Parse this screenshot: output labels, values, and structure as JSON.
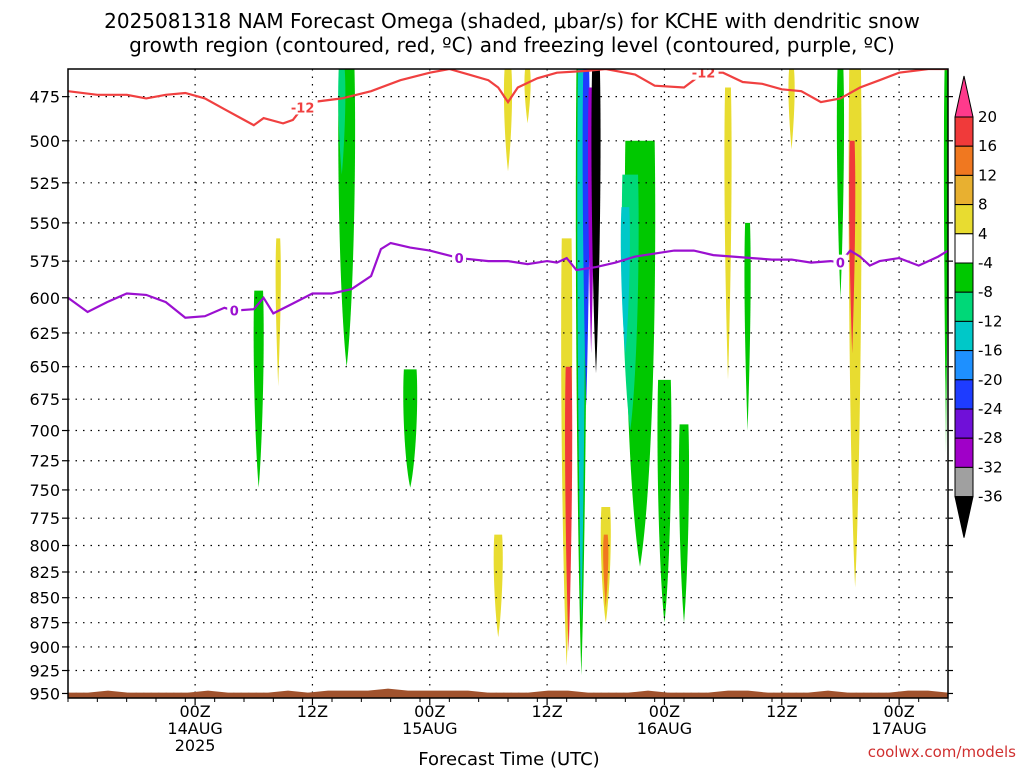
{
  "chart_data": {
    "type": "heatmap",
    "title_line1": "2025081318 NAM Forecast Omega (shaded, μbar/s) for KCHE with dendritic snow",
    "title_line2": "growth region (contoured, red, ºC) and freezing level (contoured, purple, ºC)",
    "xlabel": "Forecast Time (UTC)",
    "credit": "coolwx.com/models",
    "y_ticks": [
      475,
      500,
      525,
      550,
      575,
      600,
      625,
      650,
      675,
      700,
      725,
      750,
      775,
      800,
      825,
      850,
      875,
      900,
      925,
      950
    ],
    "ylim": [
      460,
      955
    ],
    "y_scale": "log-pressure",
    "xlim_hours": [
      -13,
      77
    ],
    "x_ticks": [
      {
        "hour": 0,
        "l1": "00Z",
        "l2": "14AUG",
        "l3": "2025"
      },
      {
        "hour": 12,
        "l1": "12Z",
        "l2": "",
        "l3": ""
      },
      {
        "hour": 24,
        "l1": "00Z",
        "l2": "15AUG",
        "l3": ""
      },
      {
        "hour": 36,
        "l1": "12Z",
        "l2": "",
        "l3": ""
      },
      {
        "hour": 48,
        "l1": "00Z",
        "l2": "16AUG",
        "l3": ""
      },
      {
        "hour": 60,
        "l1": "12Z",
        "l2": "",
        "l3": ""
      },
      {
        "hour": 72,
        "l1": "00Z",
        "l2": "17AUG",
        "l3": ""
      }
    ],
    "grid": true,
    "colorbar": {
      "labels": [
        "20",
        "16",
        "12",
        "8",
        "4",
        "-4",
        "-8",
        "-12",
        "-16",
        "-20",
        "-24",
        "-28",
        "-32",
        "-36"
      ],
      "colors": [
        "#ff3a8c",
        "#f03a3a",
        "#f07820",
        "#e8b030",
        "#e8dc30",
        "#ffffff",
        "#00c800",
        "#00d878",
        "#00c8c8",
        "#1e90ff",
        "#1e3cff",
        "#7010d8",
        "#a000c8",
        "#a0a0a0",
        "#000000"
      ]
    },
    "isotherm_-12C": {
      "label": "-12",
      "color": "#f04040",
      "points": [
        [
          -13,
          472
        ],
        [
          -10,
          474
        ],
        [
          -7,
          474
        ],
        [
          -5,
          476
        ],
        [
          -3,
          474
        ],
        [
          -1,
          473
        ],
        [
          1,
          476
        ],
        [
          3,
          482
        ],
        [
          5,
          488
        ],
        [
          6,
          491
        ],
        [
          7,
          487
        ],
        [
          9,
          490
        ],
        [
          10,
          488
        ],
        [
          11,
          481
        ],
        [
          12,
          478
        ],
        [
          15,
          476
        ],
        [
          18,
          472
        ],
        [
          21,
          466
        ],
        [
          24,
          462
        ],
        [
          26,
          460
        ],
        [
          28,
          463
        ],
        [
          30,
          466
        ],
        [
          31,
          470
        ],
        [
          32,
          478
        ],
        [
          33,
          470
        ],
        [
          35,
          465
        ],
        [
          37,
          462
        ],
        [
          40,
          461
        ],
        [
          42,
          460
        ],
        [
          45,
          463
        ],
        [
          47,
          469
        ],
        [
          50,
          470
        ],
        [
          52,
          462
        ],
        [
          54,
          462
        ],
        [
          56,
          467
        ],
        [
          58,
          468
        ],
        [
          60,
          471
        ],
        [
          62,
          472
        ],
        [
          64,
          478
        ],
        [
          66,
          476
        ],
        [
          68,
          470
        ],
        [
          70,
          466
        ],
        [
          72,
          462
        ],
        [
          75,
          460
        ],
        [
          77,
          460
        ]
      ]
    },
    "freezing_level_0C": {
      "label": "0",
      "color": "#9b10d0",
      "points": [
        [
          -13,
          600
        ],
        [
          -11,
          610
        ],
        [
          -9,
          603
        ],
        [
          -7,
          597
        ],
        [
          -5,
          598
        ],
        [
          -3,
          603
        ],
        [
          -1,
          614
        ],
        [
          1,
          613
        ],
        [
          3,
          607
        ],
        [
          4,
          609
        ],
        [
          6,
          608
        ],
        [
          7,
          600
        ],
        [
          8,
          611
        ],
        [
          10,
          604
        ],
        [
          12,
          597
        ],
        [
          14,
          597
        ],
        [
          16,
          594
        ],
        [
          18,
          585
        ],
        [
          19,
          567
        ],
        [
          20,
          563
        ],
        [
          22,
          566
        ],
        [
          24,
          568
        ],
        [
          27,
          573
        ],
        [
          30,
          575
        ],
        [
          32,
          575
        ],
        [
          34,
          577
        ],
        [
          36,
          575
        ],
        [
          37,
          576
        ],
        [
          38,
          573
        ],
        [
          39,
          581
        ],
        [
          41,
          579
        ],
        [
          43,
          576
        ],
        [
          45,
          572
        ],
        [
          47,
          570
        ],
        [
          49,
          568
        ],
        [
          51,
          568
        ],
        [
          53,
          571
        ],
        [
          55,
          572
        ],
        [
          57,
          573
        ],
        [
          59,
          574
        ],
        [
          61,
          574
        ],
        [
          63,
          576
        ],
        [
          65,
          575
        ],
        [
          66,
          576
        ],
        [
          67,
          568
        ],
        [
          68,
          572
        ],
        [
          69,
          578
        ],
        [
          70,
          575
        ],
        [
          72,
          573
        ],
        [
          74,
          578
        ],
        [
          76,
          572
        ],
        [
          77,
          568
        ]
      ]
    },
    "omega_regions": [
      {
        "v": -6,
        "hour": 6.5,
        "p_top": 595,
        "p_bot": 748,
        "w": 0.9
      },
      {
        "v": 6,
        "hour": 8.5,
        "p_top": 560,
        "p_bot": 665,
        "w": 0.4
      },
      {
        "v": -6,
        "hour": 15.5,
        "p_top": 460,
        "p_bot": 650,
        "w": 1.6
      },
      {
        "v": -10,
        "hour": 15.0,
        "p_top": 460,
        "p_bot": 520,
        "w": 0.6
      },
      {
        "v": -6,
        "hour": 22.0,
        "p_top": 652,
        "p_bot": 748,
        "w": 1.3
      },
      {
        "v": 6,
        "hour": 31.0,
        "p_top": 790,
        "p_bot": 890,
        "w": 0.8
      },
      {
        "v": 6,
        "hour": 32.0,
        "p_top": 460,
        "p_bot": 518,
        "w": 0.7
      },
      {
        "v": 6,
        "hour": 34.0,
        "p_top": 460,
        "p_bot": 490,
        "w": 0.5
      },
      {
        "v": 6,
        "hour": 38.0,
        "p_top": 560,
        "p_bot": 920,
        "w": 1.0
      },
      {
        "v": 18,
        "hour": 38.2,
        "p_top": 650,
        "p_bot": 905,
        "w": 0.6
      },
      {
        "v": -6,
        "hour": 39.5,
        "p_top": 460,
        "p_bot": 930,
        "w": 1.0
      },
      {
        "v": -14,
        "hour": 39.5,
        "p_top": 460,
        "p_bot": 875,
        "w": 0.7
      },
      {
        "v": -22,
        "hour": 40.0,
        "p_top": 460,
        "p_bot": 680,
        "w": 0.6
      },
      {
        "v": -29,
        "hour": 40.5,
        "p_top": 470,
        "p_bot": 640,
        "w": 0.5
      },
      {
        "v": -36,
        "hour": 41.0,
        "p_top": 460,
        "p_bot": 655,
        "w": 0.8
      },
      {
        "v": 6,
        "hour": 42.0,
        "p_top": 765,
        "p_bot": 875,
        "w": 0.9
      },
      {
        "v": 14,
        "hour": 42.0,
        "p_top": 790,
        "p_bot": 860,
        "w": 0.4
      },
      {
        "v": -6,
        "hour": 45.5,
        "p_top": 500,
        "p_bot": 820,
        "w": 3.0
      },
      {
        "v": -10,
        "hour": 44.5,
        "p_top": 520,
        "p_bot": 700,
        "w": 1.6
      },
      {
        "v": -14,
        "hour": 44.0,
        "p_top": 540,
        "p_bot": 640,
        "w": 0.8
      },
      {
        "v": -6,
        "hour": 48.0,
        "p_top": 660,
        "p_bot": 875,
        "w": 1.3
      },
      {
        "v": -6,
        "hour": 50.0,
        "p_top": 695,
        "p_bot": 875,
        "w": 0.9
      },
      {
        "v": 6,
        "hour": 54.5,
        "p_top": 470,
        "p_bot": 660,
        "w": 0.6
      },
      {
        "v": -6,
        "hour": 56.5,
        "p_top": 550,
        "p_bot": 700,
        "w": 0.5
      },
      {
        "v": 6,
        "hour": 61.0,
        "p_top": 460,
        "p_bot": 505,
        "w": 0.5
      },
      {
        "v": -6,
        "hour": 66.0,
        "p_top": 460,
        "p_bot": 600,
        "w": 0.6
      },
      {
        "v": 6,
        "hour": 67.5,
        "p_top": 460,
        "p_bot": 840,
        "w": 1.2
      },
      {
        "v": 18,
        "hour": 67.2,
        "p_top": 500,
        "p_bot": 640,
        "w": 0.5
      },
      {
        "v": -6,
        "hour": 76.8,
        "p_top": 460,
        "p_bot": 720,
        "w": 0.3
      }
    ],
    "terrain_top_hpa": 948
  }
}
